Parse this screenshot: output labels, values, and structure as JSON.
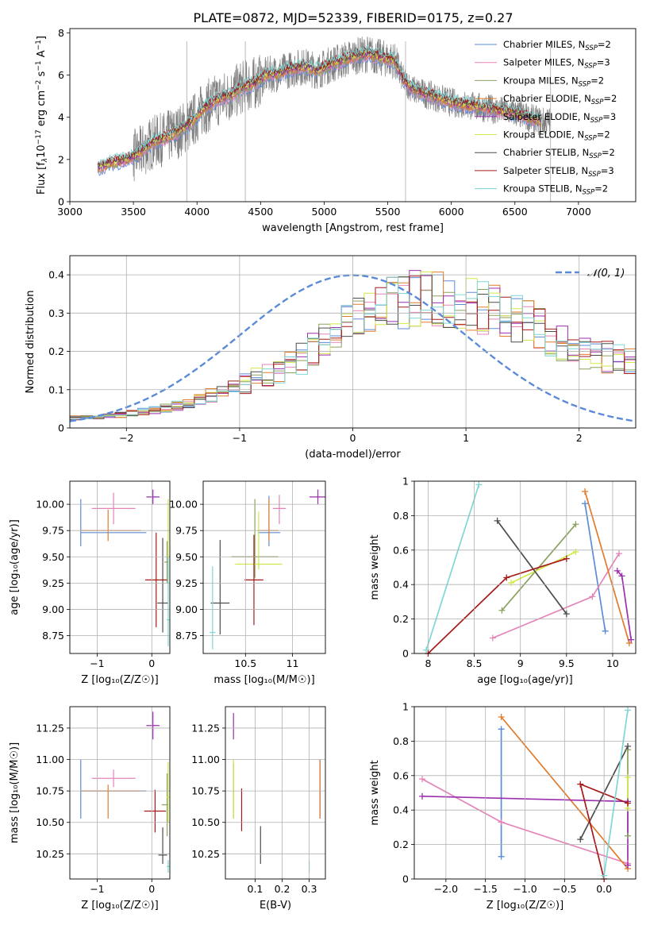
{
  "title": "PLATE=0872, MJD=52339, FIBERID=0175, z=0.27",
  "colors": {
    "chabrier_miles": "#5b8bd8",
    "salpeter_miles": "#e584b8",
    "kroupa_miles": "#8aa25e",
    "chabrier_elodie": "#e07b2c",
    "salpeter_elodie": "#9b2fae",
    "kroupa_elodie": "#d2e84a",
    "chabrier_stelib": "#4d4d4d",
    "salpeter_stelib": "#a61a1a",
    "kroupa_stelib": "#7fd6d6",
    "data": "#7f7f7f",
    "gaussian": "#5b8bd8"
  },
  "chart_data": [
    {
      "id": "spectrum",
      "type": "line",
      "xlabel": "wavelength [Angstrom, rest frame]",
      "ylabel_parts": [
        "Flux [f",
        "λ",
        "10",
        "−17",
        " erg cm",
        "−2",
        " s",
        "−1",
        " A",
        "−1",
        "]"
      ],
      "xlim": [
        3000,
        7450
      ],
      "ylim": [
        0,
        8.2
      ],
      "xticks": [
        3000,
        3500,
        4000,
        4500,
        5000,
        5500,
        6000,
        6500,
        7000
      ],
      "yticks": [
        0,
        2,
        4,
        6,
        8
      ],
      "legend_position": "top-right",
      "legend": [
        {
          "label": "Chabrier MILES, N",
          "sub": "SSP",
          "suffix": "=2",
          "color": "#5b8bd8"
        },
        {
          "label": "Salpeter MILES, N",
          "sub": "SSP",
          "suffix": "=3",
          "color": "#e584b8"
        },
        {
          "label": "Kroupa MILES, N",
          "sub": "SSP",
          "suffix": "=2",
          "color": "#8aa25e"
        },
        {
          "label": "Chabrier ELODIE, N",
          "sub": "SSP",
          "suffix": "=2",
          "color": "#e07b2c"
        },
        {
          "label": "Salpeter ELODIE, N",
          "sub": "SSP",
          "suffix": "=3",
          "color": "#9b2fae"
        },
        {
          "label": "Kroupa ELODIE, N",
          "sub": "SSP",
          "suffix": "=2",
          "color": "#d2e84a"
        },
        {
          "label": "Chabrier STELIB, N",
          "sub": "SSP",
          "suffix": "=2",
          "color": "#4d4d4d"
        },
        {
          "label": "Salpeter STELIB, N",
          "sub": "SSP",
          "suffix": "=3",
          "color": "#a61a1a"
        },
        {
          "label": "Kroupa STELIB, N",
          "sub": "SSP",
          "suffix": "=2",
          "color": "#7fd6d6"
        }
      ],
      "model_continuum": {
        "x": [
          3220,
          3300,
          3450,
          3550,
          3650,
          3750,
          3850,
          3950,
          4050,
          4150,
          4250,
          4350,
          4450,
          4550,
          4650,
          4750,
          4850,
          4950,
          5050,
          5150,
          5250,
          5350,
          5450,
          5550,
          5620,
          5700,
          5800,
          5900,
          6000,
          6100,
          6200,
          6300,
          6400,
          6500,
          6600,
          6700
        ],
        "y": [
          1.6,
          1.8,
          2.0,
          2.3,
          2.8,
          3.0,
          3.3,
          3.7,
          4.4,
          4.8,
          5.0,
          5.4,
          5.6,
          6.0,
          6.1,
          6.3,
          6.4,
          6.2,
          6.5,
          6.7,
          6.9,
          7.0,
          6.8,
          6.7,
          5.8,
          5.3,
          5.1,
          4.9,
          4.7,
          4.6,
          4.5,
          4.4,
          4.3,
          4.2,
          4.0,
          3.8
        ]
      },
      "observed_range": [
        3220,
        6780
      ]
    },
    {
      "id": "residuals",
      "type": "area",
      "xlabel": "(data-model)/error",
      "ylabel": "Normed distribution",
      "xlim": [
        -2.5,
        2.5
      ],
      "ylim": [
        0,
        0.45
      ],
      "xticks": [
        -2,
        -1,
        0,
        1,
        2
      ],
      "yticks": [
        0.0,
        0.1,
        0.2,
        0.3,
        0.4
      ],
      "legend_position": "top-right",
      "gaussian_label": "𝒩(0, 1)",
      "bin_width": 0.1,
      "envelope": {
        "x": [
          -2.5,
          -2.0,
          -1.5,
          -1.0,
          -0.5,
          0.0,
          0.5,
          1.0,
          1.5,
          2.0,
          2.5
        ],
        "y": [
          0.025,
          0.035,
          0.06,
          0.11,
          0.17,
          0.28,
          0.34,
          0.33,
          0.28,
          0.2,
          0.17
        ]
      }
    },
    {
      "id": "z_age",
      "type": "scatter",
      "xlabel": "Z [log₁₀(Z/Z☉)]",
      "ylabel": "age  [log₁₀(age/yr)]",
      "xlim": [
        -1.5,
        0.33
      ],
      "ylim": [
        8.58,
        10.22
      ],
      "xticks": [
        -1,
        0
      ],
      "yticks": [
        8.75,
        9.0,
        9.25,
        9.5,
        9.75,
        10.0
      ],
      "ytick_labels": [
        "8.75",
        "9.00",
        "9.25",
        "9.50",
        "9.75",
        "10.00"
      ],
      "points": [
        {
          "color": "#5b8bd8",
          "x": -1.3,
          "y": 9.73,
          "xerr": [
            0.0,
            1.2
          ],
          "yerr": [
            0.13,
            0.32
          ]
        },
        {
          "color": "#e584b8",
          "x": -0.7,
          "y": 9.96,
          "xerr": [
            0.4,
            0.4
          ],
          "yerr": [
            0.15,
            0.15
          ]
        },
        {
          "color": "#8aa25e",
          "x": 0.28,
          "y": 9.45,
          "xerr": [
            0.05,
            0.03
          ],
          "yerr": [
            0.2,
            0.2
          ]
        },
        {
          "color": "#e07b2c",
          "x": -0.8,
          "y": 9.75,
          "xerr": [
            0.5,
            0.6
          ],
          "yerr": [
            0.1,
            0.2
          ]
        },
        {
          "color": "#9b2fae",
          "x": 0.02,
          "y": 10.07,
          "xerr": [
            0.12,
            0.12
          ],
          "yerr": [
            0.07,
            0.07
          ]
        },
        {
          "color": "#d2e84a",
          "x": 0.3,
          "y": 9.5,
          "xerr": [
            0.05,
            0.02
          ],
          "yerr": [
            0.28,
            0.55
          ]
        },
        {
          "color": "#4d4d4d",
          "x": 0.2,
          "y": 9.06,
          "xerr": [
            0.1,
            0.1
          ],
          "yerr": [
            0.28,
            0.62
          ]
        },
        {
          "color": "#a61a1a",
          "x": 0.08,
          "y": 9.28,
          "xerr": [
            0.2,
            0.2
          ],
          "yerr": [
            0.45,
            0.45
          ]
        },
        {
          "color": "#7fd6d6",
          "x": 0.3,
          "y": 8.9,
          "xerr": [
            0.03,
            0.03
          ],
          "yerr": [
            0.25,
            0.6
          ]
        }
      ]
    },
    {
      "id": "mass_age",
      "type": "scatter",
      "xlabel": "mass [log₁₀(M/M☉)]",
      "ylabel": "",
      "xlim": [
        10.05,
        11.35
      ],
      "ylim": [
        8.58,
        10.22
      ],
      "xticks": [
        10.5,
        11.0
      ],
      "yticks": [
        8.75,
        9.0,
        9.25,
        9.5,
        9.75,
        10.0
      ],
      "ytick_labels": [
        "8.75",
        "9.00",
        "9.25",
        "9.50",
        "9.75",
        "10.00"
      ],
      "points": [
        {
          "color": "#5b8bd8",
          "x": 10.75,
          "y": 9.73,
          "xerr": [
            0.12,
            0.12
          ],
          "yerr": [
            0.13,
            0.35
          ]
        },
        {
          "color": "#e584b8",
          "x": 10.86,
          "y": 9.96,
          "xerr": [
            0.07,
            0.07
          ],
          "yerr": [
            0.15,
            0.13
          ]
        },
        {
          "color": "#8aa25e",
          "x": 10.6,
          "y": 9.5,
          "xerr": [
            0.25,
            0.25
          ],
          "yerr": [
            0.2,
            0.55
          ]
        },
        {
          "color": "#e07b2c",
          "x": 10.75,
          "y": 9.75,
          "xerr": [
            0.12,
            0.1
          ],
          "yerr": [
            0.1,
            0.3
          ]
        },
        {
          "color": "#9b2fae",
          "x": 11.27,
          "y": 10.07,
          "xerr": [
            0.09,
            0.09
          ],
          "yerr": [
            0.07,
            0.07
          ]
        },
        {
          "color": "#d2e84a",
          "x": 10.64,
          "y": 9.43,
          "xerr": [
            0.25,
            0.25
          ],
          "yerr": [
            0.05,
            0.5
          ]
        },
        {
          "color": "#4d4d4d",
          "x": 10.23,
          "y": 9.06,
          "xerr": [
            0.1,
            0.1
          ],
          "yerr": [
            0.3,
            0.6
          ]
        },
        {
          "color": "#a61a1a",
          "x": 10.59,
          "y": 9.28,
          "xerr": [
            0.1,
            0.1
          ],
          "yerr": [
            0.43,
            0.43
          ]
        },
        {
          "color": "#7fd6d6",
          "x": 10.15,
          "y": 8.78,
          "xerr": [
            0.03,
            0.03
          ],
          "yerr": [
            0.16,
            0.63
          ]
        }
      ]
    },
    {
      "id": "age_weight",
      "type": "line",
      "xlabel": "age  [log₁₀(age/yr)]",
      "ylabel": "mass weight",
      "xlim": [
        7.85,
        10.25
      ],
      "ylim": [
        0,
        1.0
      ],
      "xticks": [
        8.0,
        8.5,
        9.0,
        9.5,
        10.0
      ],
      "yticks": [
        0.0,
        0.2,
        0.4,
        0.6,
        0.8,
        1.0
      ],
      "series": [
        {
          "color": "#5b8bd8",
          "x": [
            9.7,
            9.92
          ],
          "y": [
            0.87,
            0.13
          ]
        },
        {
          "color": "#e584b8",
          "x": [
            8.7,
            9.78,
            10.07
          ],
          "y": [
            0.09,
            0.33,
            0.58
          ]
        },
        {
          "color": "#8aa25e",
          "x": [
            8.8,
            9.6
          ],
          "y": [
            0.25,
            0.75
          ]
        },
        {
          "color": "#e07b2c",
          "x": [
            9.7,
            10.18
          ],
          "y": [
            0.94,
            0.06
          ]
        },
        {
          "color": "#9b2fae",
          "x": [
            10.05,
            10.1,
            10.2
          ],
          "y": [
            0.48,
            0.45,
            0.08
          ]
        },
        {
          "color": "#d2e84a",
          "x": [
            8.9,
            9.6
          ],
          "y": [
            0.41,
            0.59
          ]
        },
        {
          "color": "#4d4d4d",
          "x": [
            8.75,
            9.5
          ],
          "y": [
            0.77,
            0.23
          ]
        },
        {
          "color": "#a61a1a",
          "x": [
            8.0,
            8.85,
            9.5
          ],
          "y": [
            0.0,
            0.44,
            0.55
          ]
        },
        {
          "color": "#7fd6d6",
          "x": [
            7.98,
            8.55
          ],
          "y": [
            0.02,
            0.98
          ]
        }
      ]
    },
    {
      "id": "z_mass",
      "type": "scatter",
      "xlabel": "Z [log₁₀(Z/Z☉)]",
      "ylabel": "mass [log₁₀(M/M☉)]",
      "xlim": [
        -1.5,
        0.33
      ],
      "ylim": [
        10.05,
        11.42
      ],
      "xticks": [
        -1,
        0
      ],
      "yticks": [
        10.25,
        10.5,
        10.75,
        11.0,
        11.25
      ],
      "ytick_labels": [
        "10.25",
        "10.50",
        "10.75",
        "11.00",
        "11.25"
      ],
      "points": [
        {
          "color": "#5b8bd8",
          "x": -1.3,
          "y": 10.75,
          "xerr": [
            0.0,
            1.2
          ],
          "yerr": [
            0.22,
            0.25
          ]
        },
        {
          "color": "#e584b8",
          "x": -0.7,
          "y": 10.85,
          "xerr": [
            0.4,
            0.4
          ],
          "yerr": [
            0.07,
            0.07
          ]
        },
        {
          "color": "#8aa25e",
          "x": 0.28,
          "y": 10.64,
          "xerr": [
            0.1,
            0.03
          ],
          "yerr": [
            0.25,
            0.25
          ]
        },
        {
          "color": "#e07b2c",
          "x": -0.8,
          "y": 10.75,
          "xerr": [
            0.5,
            0.6
          ],
          "yerr": [
            0.22,
            0.05
          ]
        },
        {
          "color": "#9b2fae",
          "x": 0.02,
          "y": 11.27,
          "xerr": [
            0.12,
            0.12
          ],
          "yerr": [
            0.11,
            0.11
          ]
        },
        {
          "color": "#d2e84a",
          "x": 0.3,
          "y": 10.7,
          "xerr": [
            0.03,
            0.02
          ],
          "yerr": [
            0.2,
            0.28
          ]
        },
        {
          "color": "#4d4d4d",
          "x": 0.2,
          "y": 10.24,
          "xerr": [
            0.08,
            0.08
          ],
          "yerr": [
            0.07,
            0.22
          ]
        },
        {
          "color": "#a61a1a",
          "x": 0.06,
          "y": 10.59,
          "xerr": [
            0.2,
            0.2
          ],
          "yerr": [
            0.17,
            0.17
          ]
        },
        {
          "color": "#7fd6d6",
          "x": 0.3,
          "y": 10.15,
          "xerr": [
            0.03,
            0.03
          ],
          "yerr": [
            0.05,
            0.05
          ]
        }
      ]
    },
    {
      "id": "ebv_mass",
      "type": "scatter",
      "xlabel": "E(B-V)",
      "ylabel": "",
      "xlim": [
        -0.01,
        0.36
      ],
      "ylim": [
        10.05,
        11.42
      ],
      "xticks": [
        0.1,
        0.2,
        0.3
      ],
      "xtick_labels": [
        "0.1",
        "0.2",
        "0.3"
      ],
      "yticks": [
        10.25,
        10.5,
        10.75,
        11.0,
        11.25
      ],
      "ytick_labels": [
        "10.25",
        "10.50",
        "10.75",
        "11.00",
        "11.25"
      ],
      "points": [
        {
          "color": "#5b8bd8",
          "x": 0.34,
          "y": 10.75,
          "yerr": [
            0.22,
            0.25
          ]
        },
        {
          "color": "#e584b8",
          "x": 0.34,
          "y": 10.85,
          "yerr": [
            0.05,
            0.07
          ]
        },
        {
          "color": "#8aa25e",
          "x": 0.02,
          "y": 10.75,
          "yerr": [
            0.22,
            0.22
          ]
        },
        {
          "color": "#e07b2c",
          "x": 0.34,
          "y": 10.75,
          "yerr": [
            0.22,
            0.25
          ]
        },
        {
          "color": "#9b2fae",
          "x": 0.02,
          "y": 11.27,
          "yerr": [
            0.11,
            0.1
          ]
        },
        {
          "color": "#d2e84a",
          "x": 0.02,
          "y": 10.75,
          "yerr": [
            0.22,
            0.25
          ]
        },
        {
          "color": "#4d4d4d",
          "x": 0.12,
          "y": 10.32,
          "yerr": [
            0.15,
            0.15
          ]
        },
        {
          "color": "#a61a1a",
          "x": 0.05,
          "y": 10.59,
          "yerr": [
            0.16,
            0.18
          ]
        },
        {
          "color": "#7fd6d6",
          "x": 0.3,
          "y": 10.15,
          "yerr": [
            0.05,
            0.05
          ]
        }
      ]
    },
    {
      "id": "z_weight",
      "type": "line",
      "xlabel": "Z [log₁₀(Z/Z☉)]",
      "ylabel": "mass weight",
      "xlim": [
        -2.4,
        0.4
      ],
      "ylim": [
        0,
        1.0
      ],
      "xticks": [
        -2.0,
        -1.5,
        -1.0,
        -0.5,
        0.0
      ],
      "xtick_labels": [
        "−2.0",
        "−1.5",
        "−1.0",
        "−0.5",
        "0.0"
      ],
      "yticks": [
        0.0,
        0.2,
        0.4,
        0.6,
        0.8,
        1.0
      ],
      "series": [
        {
          "color": "#5b8bd8",
          "x": [
            -1.3,
            -1.3
          ],
          "y": [
            0.87,
            0.13
          ]
        },
        {
          "color": "#e584b8",
          "x": [
            -2.3,
            -1.3,
            0.3
          ],
          "y": [
            0.58,
            0.33,
            0.09
          ]
        },
        {
          "color": "#8aa25e",
          "x": [
            0.3,
            0.3
          ],
          "y": [
            0.25,
            0.75
          ]
        },
        {
          "color": "#e07b2c",
          "x": [
            -1.3,
            0.3
          ],
          "y": [
            0.94,
            0.06
          ]
        },
        {
          "color": "#9b2fae",
          "x": [
            -2.3,
            0.3,
            0.3
          ],
          "y": [
            0.48,
            0.45,
            0.08
          ]
        },
        {
          "color": "#d2e84a",
          "x": [
            0.3,
            0.3
          ],
          "y": [
            0.41,
            0.59
          ]
        },
        {
          "color": "#4d4d4d",
          "x": [
            -0.3,
            0.3
          ],
          "y": [
            0.23,
            0.77
          ]
        },
        {
          "color": "#a61a1a",
          "x": [
            0.0,
            -0.3,
            0.3
          ],
          "y": [
            0.0,
            0.55,
            0.44
          ]
        },
        {
          "color": "#7fd6d6",
          "x": [
            0.0,
            0.3
          ],
          "y": [
            0.02,
            0.98
          ]
        }
      ]
    }
  ]
}
